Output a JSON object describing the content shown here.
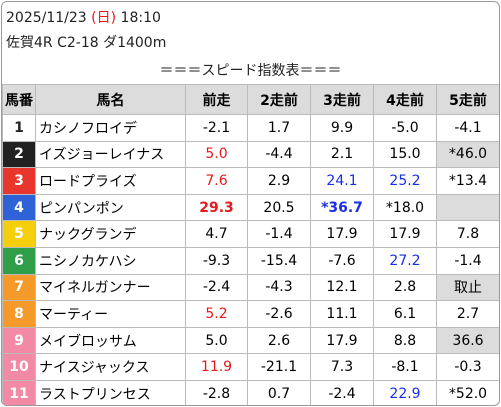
{
  "header": {
    "date": "2025/11/23",
    "weekday": "(日)",
    "time": "18:10",
    "race": "佐賀4R C2-18 ダ1400m"
  },
  "title": "＝＝＝スピード指数表＝＝＝",
  "table": {
    "columns": [
      "馬番",
      "馬名",
      "前走",
      "2走前",
      "3走前",
      "4走前",
      "5走前"
    ],
    "post_colors": [
      "#ffffff",
      "#222222",
      "#e8352e",
      "#2f62d6",
      "#f5cf0c",
      "#2f9e48",
      "#f39a2a",
      "#f39a2a",
      "#f28aa5",
      "#f28aa5",
      "#f28aa5"
    ],
    "rows": [
      [
        "1",
        "カシノフロイデ",
        "-2.1",
        "1.7",
        "9.9",
        "-5.0",
        "-4.1"
      ],
      [
        "2",
        "イズジョーレイナス",
        "5.0",
        "-4.4",
        "2.1",
        "15.0",
        "*46.0"
      ],
      [
        "3",
        "ロードプライズ",
        "7.6",
        "2.9",
        "24.1",
        "25.2",
        "*13.4"
      ],
      [
        "4",
        "ピンパンポン",
        "29.3",
        "20.5",
        "*36.7",
        "*18.0",
        null
      ],
      [
        "5",
        "ナックグランデ",
        "4.7",
        "-1.4",
        "17.9",
        "17.9",
        "7.8"
      ],
      [
        "6",
        "ニシノカケハシ",
        "-9.3",
        "-15.4",
        "-7.6",
        "27.2",
        "-1.4"
      ],
      [
        "7",
        "マイネルガンナー",
        "-2.4",
        "-4.3",
        "12.1",
        "2.8",
        "取止"
      ],
      [
        "8",
        "マーティー",
        "5.2",
        "-2.6",
        "11.1",
        "6.1",
        "2.7"
      ],
      [
        "9",
        "メイブロッサム",
        "5.0",
        "2.6",
        "17.9",
        "8.8",
        "36.6"
      ],
      [
        "10",
        "ナイスジャックス",
        "11.9",
        "-21.1",
        "7.3",
        "-8.1",
        "-0.3"
      ],
      [
        "11",
        "ラストプリンセス",
        "-2.8",
        "0.7",
        "-2.4",
        "22.9",
        "*52.0"
      ]
    ]
  }
}
